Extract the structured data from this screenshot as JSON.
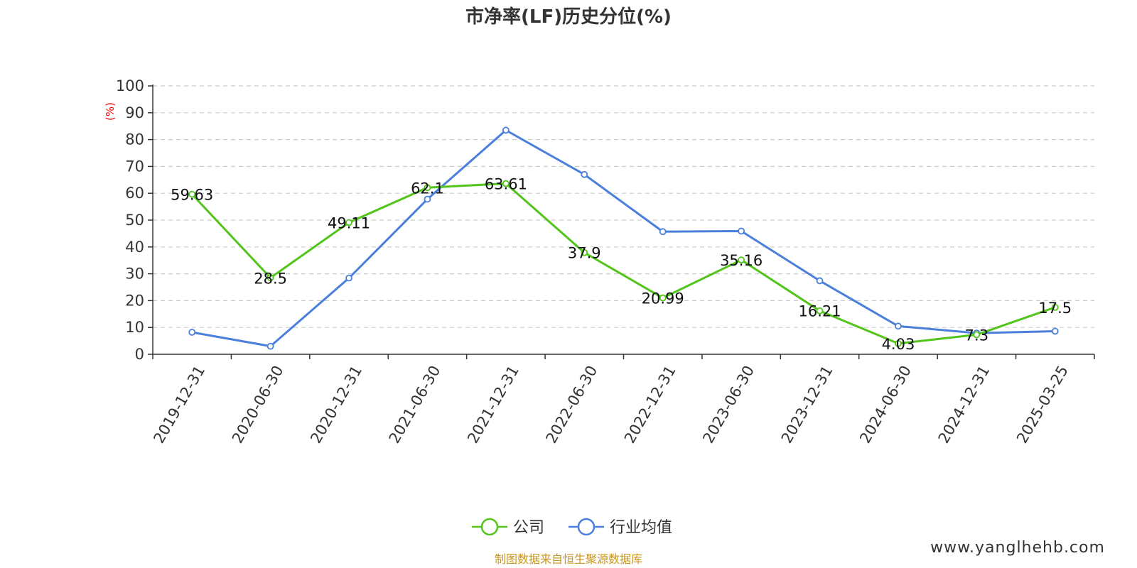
{
  "chart_data": {
    "type": "line",
    "title": "市净率(LF)历史分位(%)",
    "ylabel": "(%)",
    "xlabel": "",
    "ylim": [
      0,
      100
    ],
    "yticks": [
      0,
      10,
      20,
      30,
      40,
      50,
      60,
      70,
      80,
      90,
      100
    ],
    "categories": [
      "2019-12-31",
      "2020-06-30",
      "2020-12-31",
      "2021-06-30",
      "2021-12-31",
      "2022-06-30",
      "2022-12-31",
      "2023-06-30",
      "2023-12-31",
      "2024-06-30",
      "2024-12-31",
      "2025-03-25"
    ],
    "series": [
      {
        "name": "公司",
        "color": "#52c41a",
        "values": [
          59.63,
          28.5,
          49.11,
          62.1,
          63.61,
          37.9,
          20.99,
          35.16,
          16.21,
          4.03,
          7.3,
          17.5
        ],
        "labels": [
          "59.63",
          "28.5",
          "49.11",
          "62.1",
          "63.61",
          "37.9",
          "20.99",
          "35.16",
          "16.21",
          "4.03",
          "7.3",
          "17.5"
        ]
      },
      {
        "name": "行业均值",
        "color": "#4a7fdb",
        "values": [
          8.2,
          3.0,
          28.4,
          57.8,
          83.5,
          67.0,
          45.7,
          45.9,
          27.4,
          10.5,
          7.9,
          8.6
        ]
      }
    ],
    "grid": "horizontal-dashed",
    "legend_position": "bottom-center"
  },
  "footer": {
    "source": "制图数据来自恒生聚源数据库",
    "watermark": "www.yanglhehb.com"
  }
}
